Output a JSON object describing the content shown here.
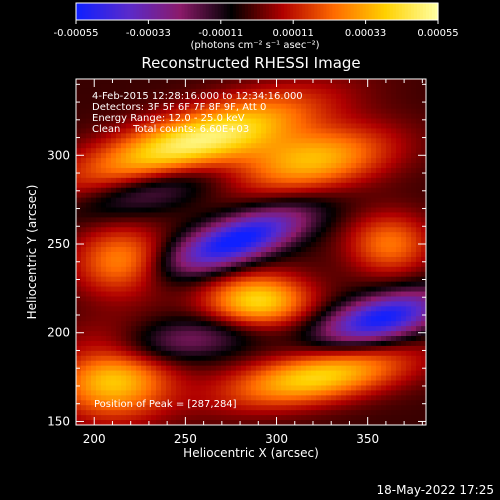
{
  "chart_data": {
    "type": "heatmap",
    "title": "Reconstructed RHESSI Image",
    "xlabel": "Heliocentric X (arcsec)",
    "ylabel": "Heliocentric Y (arcsec)",
    "xlim": [
      190,
      382
    ],
    "ylim": [
      148,
      343
    ],
    "x_ticks": [
      200,
      250,
      300,
      350
    ],
    "y_ticks": [
      150,
      200,
      250,
      300
    ],
    "colorbar": {
      "min": -0.00055,
      "max": 0.00055,
      "tick_values": [
        -0.00055,
        -0.00033,
        -0.00011,
        0.00011,
        0.00033,
        0.00055
      ],
      "tick_labels": [
        "-0.00055",
        "-0.00033",
        "-0.00011",
        "0.00011",
        "0.00033",
        "0.00055"
      ],
      "unit_label": "(photons cm⁻² s⁻¹ asec⁻²)",
      "colors": [
        "#1020ff",
        "#5a2acb",
        "#8b1a6a",
        "#000000",
        "#b00000",
        "#ff6a00",
        "#ffd000",
        "#ffffa0"
      ]
    },
    "annotations": [
      "4-Feb-2015 12:28:16.000 to 12:34:16.000",
      "Detectors: 3F 5F 6F 7F 8F 9F, Att 0",
      "Energy Range: 12.0 - 25.0 keV",
      "Clean    Total counts: 6.60E+03"
    ],
    "peak_label": "Position of Peak = [287,284]",
    "peak": [
      287,
      284
    ],
    "features": [
      {
        "kind": "positive",
        "x": 255,
        "y": 307,
        "sx": 45,
        "sy": 12,
        "rot": 18,
        "amp": 1.0
      },
      {
        "kind": "positive",
        "x": 320,
        "y": 297,
        "sx": 30,
        "sy": 12,
        "rot": 10,
        "amp": 0.7
      },
      {
        "kind": "positive",
        "x": 290,
        "y": 217,
        "sx": 20,
        "sy": 11,
        "rot": 0,
        "amp": 0.85
      },
      {
        "kind": "positive",
        "x": 322,
        "y": 175,
        "sx": 35,
        "sy": 10,
        "rot": 10,
        "amp": 0.8
      },
      {
        "kind": "positive",
        "x": 210,
        "y": 175,
        "sx": 22,
        "sy": 16,
        "rot": 0,
        "amp": 0.8
      },
      {
        "kind": "positive",
        "x": 215,
        "y": 240,
        "sx": 18,
        "sy": 14,
        "rot": 0,
        "amp": 0.55
      },
      {
        "kind": "positive",
        "x": 362,
        "y": 250,
        "sx": 16,
        "sy": 12,
        "rot": 0,
        "amp": 0.5
      },
      {
        "kind": "negative",
        "x": 278,
        "y": 252,
        "sx": 28,
        "sy": 9,
        "rot": 20,
        "amp": 1.0
      },
      {
        "kind": "negative",
        "x": 358,
        "y": 208,
        "sx": 24,
        "sy": 9,
        "rot": 15,
        "amp": 0.95
      },
      {
        "kind": "negative",
        "x": 232,
        "y": 282,
        "sx": 30,
        "sy": 9,
        "rot": 15,
        "amp": 0.45
      },
      {
        "kind": "negative",
        "x": 245,
        "y": 195,
        "sx": 40,
        "sy": 9,
        "rot": 10,
        "amp": 0.4
      }
    ]
  },
  "timestamp": "18-May-2022 17:25"
}
